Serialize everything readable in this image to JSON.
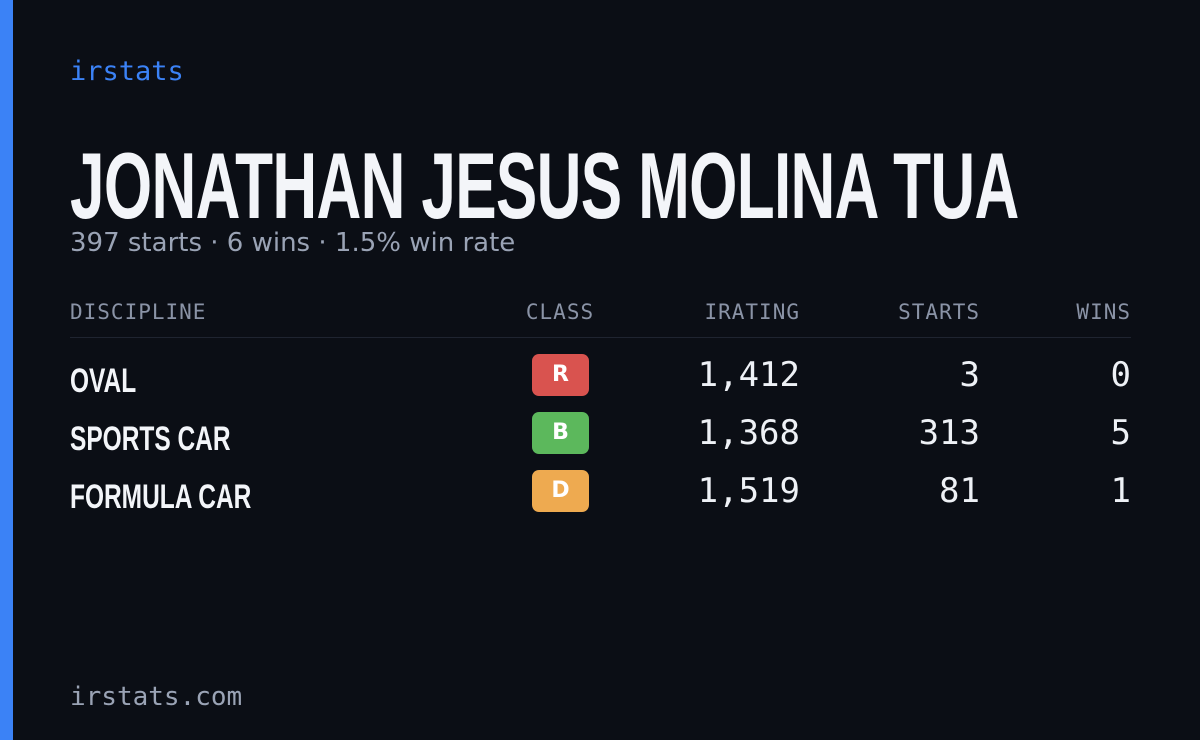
{
  "header": {
    "brand": "irstats",
    "title": "JONATHAN JESUS MOLINA TUA",
    "subtitle": "397 starts · 6 wins · 1.5% win rate"
  },
  "table": {
    "columns": [
      "DISCIPLINE",
      "CLASS",
      "IRATING",
      "STARTS",
      "WINS"
    ],
    "rows": [
      [
        "OVAL",
        "R",
        "1,412",
        "3",
        "0"
      ],
      [
        "SPORTS CAR",
        "B",
        "1,368",
        "313",
        "5"
      ],
      [
        "FORMULA CAR",
        "D",
        "1,519",
        "81",
        "1"
      ]
    ]
  },
  "footer": {
    "url": "irstats.com"
  }
}
